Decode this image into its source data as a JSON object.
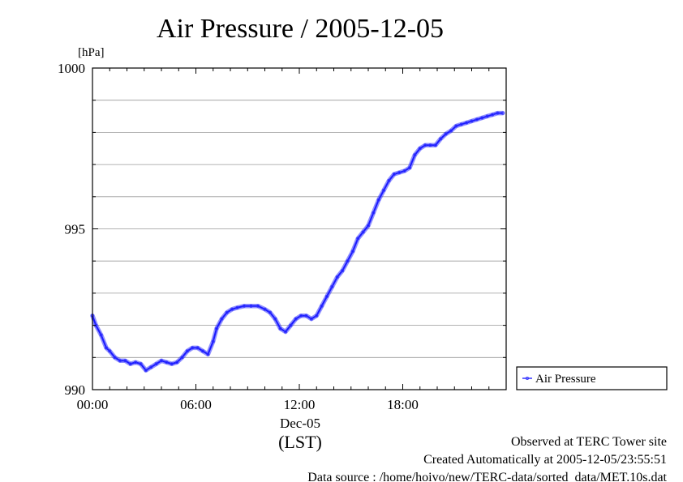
{
  "chart_data": {
    "type": "line",
    "title": "Air Pressure / 2005-12-05",
    "ylabel": "[hPa]",
    "xlabel": "(LST)",
    "date_label": "Dec-05",
    "ylim": [
      990,
      1000
    ],
    "xlim": [
      0,
      24
    ],
    "y_ticks": [
      {
        "value": 990,
        "label": "990"
      },
      {
        "value": 995,
        "label": "995"
      },
      {
        "value": 1000,
        "label": "1000"
      }
    ],
    "y_minor_step": 1,
    "x_ticks": [
      {
        "value": 0,
        "label": "00:00"
      },
      {
        "value": 6,
        "label": "06:00"
      },
      {
        "value": 12,
        "label": "12:00"
      },
      {
        "value": 18,
        "label": "18:00"
      }
    ],
    "grid": true,
    "legend_position": "right",
    "series": [
      {
        "name": "Air Pressure",
        "color": "#3333ff",
        "x": [
          0.0,
          0.2,
          0.5,
          0.8,
          1.0,
          1.3,
          1.6,
          1.9,
          2.2,
          2.5,
          2.8,
          3.1,
          3.4,
          3.7,
          4.0,
          4.3,
          4.6,
          4.9,
          5.2,
          5.5,
          5.8,
          6.1,
          6.4,
          6.7,
          7.0,
          7.2,
          7.5,
          7.8,
          8.1,
          8.4,
          8.8,
          9.2,
          9.6,
          10.0,
          10.3,
          10.6,
          10.9,
          11.2,
          11.5,
          11.8,
          12.1,
          12.4,
          12.7,
          13.0,
          13.3,
          13.6,
          13.9,
          14.2,
          14.5,
          14.8,
          15.1,
          15.4,
          15.7,
          16.0,
          16.3,
          16.6,
          16.9,
          17.2,
          17.5,
          17.8,
          18.1,
          18.4,
          18.7,
          19.0,
          19.3,
          19.6,
          19.9,
          20.2,
          20.5,
          20.8,
          21.1,
          21.4,
          21.7,
          22.0,
          22.3,
          22.6,
          22.9,
          23.2,
          23.5,
          23.8
        ],
        "values": [
          992.3,
          992.0,
          991.7,
          991.3,
          991.2,
          991.0,
          990.9,
          990.9,
          990.8,
          990.85,
          990.8,
          990.6,
          990.7,
          990.8,
          990.9,
          990.85,
          990.8,
          990.85,
          991.0,
          991.2,
          991.3,
          991.3,
          991.2,
          991.1,
          991.5,
          991.9,
          992.2,
          992.4,
          992.5,
          992.55,
          992.6,
          992.6,
          992.6,
          992.5,
          992.4,
          992.2,
          991.9,
          991.8,
          992.0,
          992.2,
          992.3,
          992.3,
          992.2,
          992.3,
          992.6,
          992.9,
          993.2,
          993.5,
          993.7,
          994.0,
          994.3,
          994.7,
          994.9,
          995.1,
          995.5,
          995.9,
          996.2,
          996.5,
          996.7,
          996.75,
          996.8,
          996.9,
          997.3,
          997.5,
          997.6,
          997.6,
          997.6,
          997.8,
          997.95,
          998.05,
          998.2,
          998.25,
          998.3,
          998.35,
          998.4,
          998.45,
          998.5,
          998.55,
          998.6,
          998.6
        ]
      }
    ]
  },
  "footer": {
    "line1": "Observed at TERC Tower site",
    "line2": "Created Automatically at 2005-12-05/23:55:51",
    "line3": "Data source : /home/hoivo/new/TERC-data/sorted_data/MET.10s.dat"
  }
}
